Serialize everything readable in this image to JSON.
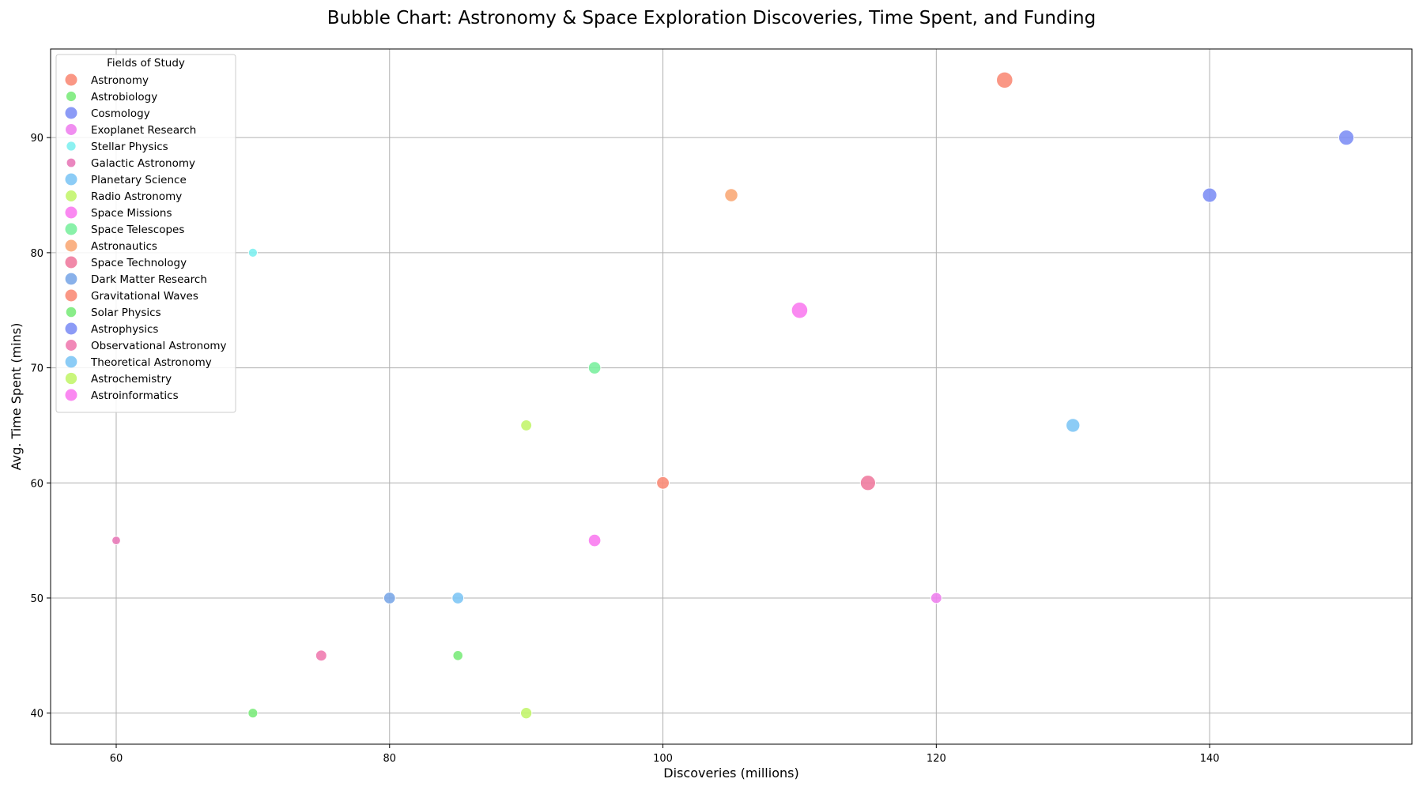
{
  "chart_data": {
    "type": "scatter",
    "title": "Bubble Chart: Astronomy & Space Exploration Discoveries, Time Spent, and Funding",
    "xlabel": "Discoveries (millions)",
    "ylabel": "Avg. Time Spent (mins)",
    "xlim": [
      55.2,
      154.8
    ],
    "ylim": [
      37.3,
      97.7
    ],
    "xticks": [
      60,
      80,
      100,
      120,
      140
    ],
    "yticks": [
      40,
      50,
      60,
      70,
      80,
      90
    ],
    "grid": true,
    "legend_title": "Fields of Study",
    "legend_position": "top-left",
    "series": [
      {
        "name": "Astronomy",
        "x": 100,
        "y": 60,
        "size": 0.45,
        "color": "#FA8C78"
      },
      {
        "name": "Astrobiology",
        "x": 70,
        "y": 40,
        "size": 0.28,
        "color": "#7CEB7C"
      },
      {
        "name": "Cosmology",
        "x": 140,
        "y": 85,
        "size": 0.55,
        "color": "#7F90F5"
      },
      {
        "name": "Exoplanet Research",
        "x": 120,
        "y": 50,
        "size": 0.36,
        "color": "#EE82EE"
      },
      {
        "name": "Stellar Physics",
        "x": 70,
        "y": 80,
        "size": 0.24,
        "color": "#7FEFEF"
      },
      {
        "name": "Galactic Astronomy",
        "x": 60,
        "y": 55,
        "size": 0.22,
        "color": "#E87AB8"
      },
      {
        "name": "Planetary Science",
        "x": 130,
        "y": 65,
        "size": 0.52,
        "color": "#7FC6F5"
      },
      {
        "name": "Radio Astronomy",
        "x": 90,
        "y": 65,
        "size": 0.36,
        "color": "#C3F56E"
      },
      {
        "name": "Space Missions",
        "x": 110,
        "y": 75,
        "size": 0.66,
        "color": "#FA7CF0"
      },
      {
        "name": "Space Telescopes",
        "x": 95,
        "y": 70,
        "size": 0.44,
        "color": "#7CF0A0"
      },
      {
        "name": "Astronautics",
        "x": 105,
        "y": 85,
        "size": 0.48,
        "color": "#FAAA78"
      },
      {
        "name": "Space Technology",
        "x": 115,
        "y": 60,
        "size": 0.6,
        "color": "#F07CA0"
      },
      {
        "name": "Dark Matter Research",
        "x": 80,
        "y": 50,
        "size": 0.4,
        "color": "#7CA8E8"
      },
      {
        "name": "Gravitational Waves",
        "x": 125,
        "y": 95,
        "size": 0.66,
        "color": "#FA8C78"
      },
      {
        "name": "Solar Physics",
        "x": 85,
        "y": 45,
        "size": 0.3,
        "color": "#7CEB7C"
      },
      {
        "name": "Astrophysics",
        "x": 150,
        "y": 90,
        "size": 0.6,
        "color": "#7F90F5"
      },
      {
        "name": "Observational Astronomy",
        "x": 75,
        "y": 45,
        "size": 0.36,
        "color": "#F07CB0"
      },
      {
        "name": "Theoretical Astronomy",
        "x": 85,
        "y": 50,
        "size": 0.4,
        "color": "#7FC6F5"
      },
      {
        "name": "Astrochemistry",
        "x": 90,
        "y": 40,
        "size": 0.38,
        "color": "#C3F56E"
      },
      {
        "name": "Astroinformatics",
        "x": 95,
        "y": 55,
        "size": 0.44,
        "color": "#FA7CF0"
      }
    ]
  }
}
